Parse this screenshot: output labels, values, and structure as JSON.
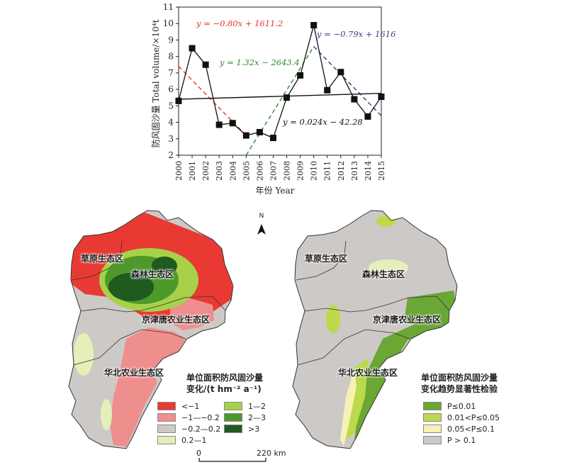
{
  "chart_data": {
    "type": "line",
    "x": [
      2000,
      2001,
      2002,
      2003,
      2004,
      2005,
      2006,
      2007,
      2008,
      2009,
      2010,
      2011,
      2012,
      2013,
      2014,
      2015
    ],
    "series": [
      {
        "values": [
          5.3,
          8.5,
          7.5,
          3.85,
          3.95,
          3.2,
          3.4,
          3.05,
          5.5,
          6.85,
          9.9,
          5.95,
          7.05,
          5.4,
          4.35,
          5.55
        ]
      }
    ],
    "trendlines": [
      {
        "label": "y = −0.80x + 1611.2",
        "x_range": [
          2000,
          2005
        ],
        "y_range": [
          7.4,
          3.2
        ],
        "color": "#e8312a",
        "dashed": true
      },
      {
        "label": "y = 1.32x − 2643.4",
        "x_range": [
          2005,
          2010
        ],
        "y_range": [
          2.0,
          8.6
        ],
        "color": "#2e8b2e",
        "dashed": true
      },
      {
        "label": "y = −0.79x + 1616",
        "x_range": [
          2010,
          2015
        ],
        "y_range": [
          8.6,
          4.4
        ],
        "color": "#2d3f8c",
        "dashed": true
      },
      {
        "label": "y = 0.024x − 42.28",
        "x_range": [
          2000,
          2015
        ],
        "y_range": [
          5.4,
          5.76
        ],
        "color": "#111111",
        "dashed": false
      }
    ],
    "ylabel": "防风固沙量 Total volume/×10⁴t",
    "xlabel": "年份 Year",
    "ylim": [
      2,
      11
    ],
    "yticks": [
      2,
      3,
      4,
      5,
      6,
      7,
      8,
      9,
      10,
      11
    ],
    "grid": false,
    "colors": {
      "series": "#111111"
    }
  },
  "maps": {
    "left": {
      "regions": [
        "草原生态区",
        "森林生态区",
        "京津唐农业生态区",
        "华北农业生态区"
      ],
      "legend_title_line1": "单位面积防风固沙量",
      "legend_title_line2": "变化/(t hm⁻² a⁻¹)",
      "legend": [
        {
          "label": "<−1",
          "color": "#e83a33"
        },
        {
          "label": "1—2",
          "color": "#a8d14a"
        },
        {
          "label": "−1—−0.2",
          "color": "#ef8f8d"
        },
        {
          "label": "2—3",
          "color": "#4d9a2a"
        },
        {
          "label": "−0.2—0.2",
          "color": "#cdc9c6"
        },
        {
          "label": ">3",
          "color": "#1f5a1f"
        },
        {
          "label": "0.2—1",
          "color": "#e4efb9"
        }
      ]
    },
    "right": {
      "regions": [
        "草原生态区",
        "森林生态区",
        "京津唐农业生态区",
        "华北农业生态区"
      ],
      "legend_title_line1": "单位面积防风固沙量",
      "legend_title_line2": "变化趋势显著性检验",
      "legend": [
        {
          "label": "P≤0.01",
          "color": "#6aa735"
        },
        {
          "label": "0.01<P≤0.05",
          "color": "#bcd94c"
        },
        {
          "label": "0.05<P≤0.1",
          "color": "#f6f1b5"
        },
        {
          "label": "P > 0.1",
          "color": "#cdc9c6"
        }
      ]
    },
    "north": "N",
    "scale": {
      "start": "0",
      "end": "220 km"
    }
  }
}
